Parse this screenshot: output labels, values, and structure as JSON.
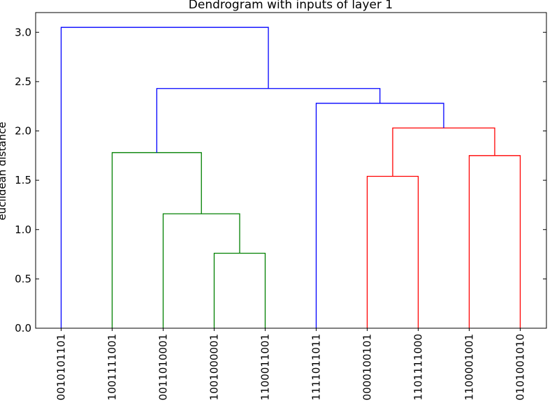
{
  "chart_data": {
    "type": "dendrogram",
    "title": "Dendrogram with inputs of layer 1",
    "xlabel": "",
    "ylabel": "euclidean distance",
    "ylim": [
      0,
      3.2
    ],
    "yticks": [
      "0.0",
      "0.5",
      "1.0",
      "1.5",
      "2.0",
      "2.5",
      "3.0"
    ],
    "ytick_values": [
      0,
      0.5,
      1.0,
      1.5,
      2.0,
      2.5,
      3.0
    ],
    "leaves": [
      "0010101101",
      "1001111001",
      "0011010001",
      "1001000001",
      "1100011001",
      "1111011011",
      "0000100101",
      "1101111000",
      "1100001001",
      "0101001010"
    ],
    "merges": [
      {
        "left": 3,
        "right": 4,
        "height": 0.76,
        "color": "green"
      },
      {
        "left": 2,
        "right": "3-4",
        "height": 1.16,
        "color": "green"
      },
      {
        "left": 1,
        "right": "2-4",
        "height": 1.78,
        "color": "green"
      },
      {
        "left": 6,
        "right": 7,
        "height": 1.54,
        "color": "red"
      },
      {
        "left": 8,
        "right": 9,
        "height": 1.75,
        "color": "red"
      },
      {
        "left": "6-7",
        "right": "8-9",
        "height": 2.03,
        "color": "red"
      },
      {
        "left": 5,
        "right": "6-9",
        "height": 2.28,
        "color": "blue"
      },
      {
        "left": "1-4",
        "right": "5-9",
        "height": 2.43,
        "color": "blue"
      },
      {
        "left": 0,
        "right": "1-9",
        "height": 3.05,
        "color": "blue"
      }
    ],
    "colors": {
      "green": "#008000",
      "red": "#ff0000",
      "blue": "#0000ff"
    },
    "grid": false
  }
}
